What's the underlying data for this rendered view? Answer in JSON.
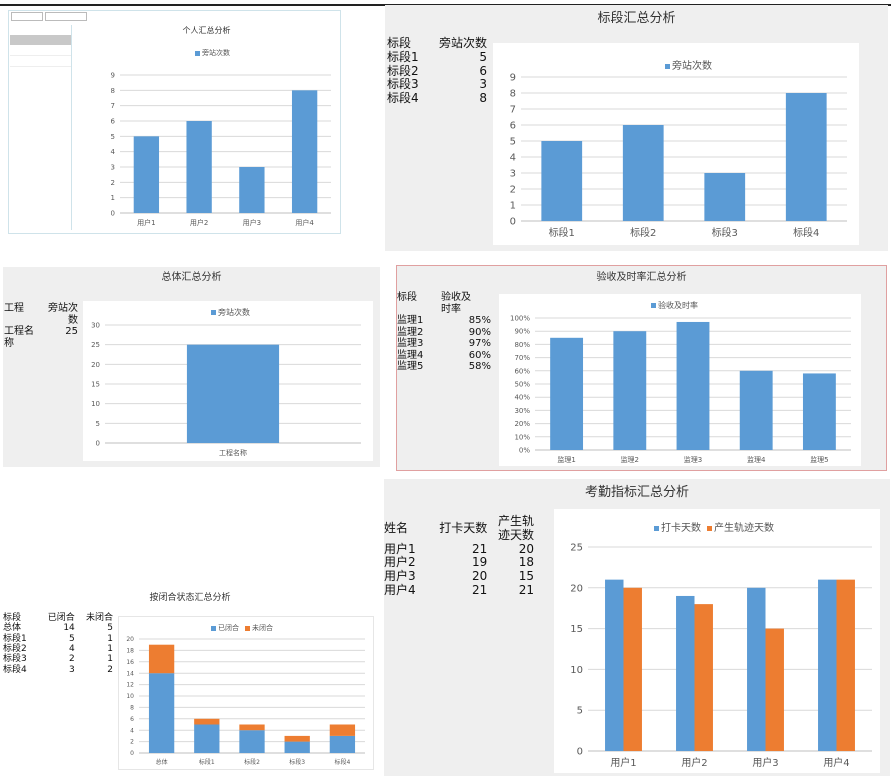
{
  "panel1": {
    "filter_bar": {
      "start_label": "",
      "start_value": "",
      "end_label": "",
      "end_value": "",
      "btn1": "",
      "btn2": "",
      "btn3": ""
    },
    "side_table": {
      "headers": [
        "",
        "",
        ""
      ],
      "rows": [
        [
          "",
          "",
          ""
        ],
        [
          "",
          "",
          ""
        ],
        [
          "",
          "",
          ""
        ]
      ]
    }
  },
  "panel3": {
    "table": {
      "headers": [
        "工程",
        "旁站次数"
      ],
      "rows": [
        [
          "工程名称",
          "25"
        ]
      ]
    }
  },
  "panel2": {
    "table": {
      "headers": [
        "标段",
        "旁站次数"
      ],
      "rows": [
        [
          "标段1",
          "5"
        ],
        [
          "标段2",
          "6"
        ],
        [
          "标段3",
          "3"
        ],
        [
          "标段4",
          "8"
        ]
      ]
    }
  },
  "panel4": {
    "table": {
      "headers": [
        "标段",
        "验收及",
        "时率"
      ],
      "rows": [
        [
          "监理1",
          "85%"
        ],
        [
          "监理2",
          "90%"
        ],
        [
          "监理3",
          "97%"
        ],
        [
          "监理4",
          "60%"
        ],
        [
          "监理5",
          "58%"
        ]
      ]
    }
  },
  "panel5": {
    "table": {
      "headers": [
        "标段",
        "已闭合",
        "未闭合"
      ],
      "rows": [
        [
          "总体",
          "14",
          "5"
        ],
        [
          "标段1",
          "5",
          "1"
        ],
        [
          "标段2",
          "4",
          "1"
        ],
        [
          "标段3",
          "2",
          "1"
        ],
        [
          "标段4",
          "3",
          "2"
        ]
      ]
    }
  },
  "panel6": {
    "table": {
      "headers": [
        "姓名",
        "打卡天数",
        "产生轨",
        "迹天数"
      ],
      "rows": [
        [
          "用户1",
          "21",
          "20"
        ],
        [
          "用户2",
          "19",
          "18"
        ],
        [
          "用户3",
          "20",
          "15"
        ],
        [
          "用户4",
          "21",
          "21"
        ]
      ]
    }
  },
  "colors": {
    "blue": "#5b9bd5",
    "orange": "#ed7d31",
    "grid": "#d9d9d9",
    "axis": "#bfbfbf"
  },
  "chart_data": [
    {
      "id": "c1",
      "type": "bar",
      "title": "个人汇总分析",
      "categories": [
        "用户1",
        "用户2",
        "用户3",
        "用户4"
      ],
      "series": [
        {
          "name": "旁站次数",
          "values": [
            5,
            6,
            3,
            8
          ]
        }
      ],
      "ylim": [
        0,
        9
      ],
      "yticks": [
        0,
        1,
        2,
        3,
        4,
        5,
        6,
        7,
        8,
        9
      ],
      "grid": true,
      "legend": "top"
    },
    {
      "id": "c2",
      "type": "bar",
      "title": "标段汇总分析",
      "categories": [
        "标段1",
        "标段2",
        "标段3",
        "标段4"
      ],
      "series": [
        {
          "name": "旁站次数",
          "values": [
            5,
            6,
            3,
            8
          ]
        }
      ],
      "ylim": [
        0,
        9
      ],
      "yticks": [
        0,
        1,
        2,
        3,
        4,
        5,
        6,
        7,
        8,
        9
      ],
      "grid": true,
      "legend": "top"
    },
    {
      "id": "c3",
      "type": "bar",
      "title": "总体汇总分析",
      "categories": [
        "工程名称"
      ],
      "series": [
        {
          "name": "旁站次数",
          "values": [
            25
          ]
        }
      ],
      "ylim": [
        0,
        30
      ],
      "yticks": [
        0,
        5,
        10,
        15,
        20,
        25,
        30
      ],
      "grid": true,
      "legend": "top"
    },
    {
      "id": "c4",
      "type": "bar",
      "title": "验收及时率汇总分析",
      "categories": [
        "监理1",
        "监理2",
        "监理3",
        "监理4",
        "监理5"
      ],
      "series": [
        {
          "name": "验收及时率",
          "values": [
            85,
            90,
            97,
            60,
            58
          ]
        }
      ],
      "ylim": [
        0,
        100
      ],
      "yticks": [
        0,
        10,
        20,
        30,
        40,
        50,
        60,
        70,
        80,
        90,
        100
      ],
      "ytick_suffix": "%",
      "grid": true,
      "legend": "top"
    },
    {
      "id": "c5",
      "type": "bar",
      "stacked": true,
      "title": "按闭合状态汇总分析",
      "categories": [
        "总体",
        "标段1",
        "标段2",
        "标段3",
        "标段4"
      ],
      "series": [
        {
          "name": "已闭合",
          "values": [
            14,
            5,
            4,
            2,
            3
          ]
        },
        {
          "name": "未闭合",
          "values": [
            5,
            1,
            1,
            1,
            2
          ]
        }
      ],
      "ylim": [
        0,
        20
      ],
      "yticks": [
        0,
        2,
        4,
        6,
        8,
        10,
        12,
        14,
        16,
        18,
        20
      ],
      "grid": true,
      "legend": "top"
    },
    {
      "id": "c6",
      "type": "bar",
      "title": "考勤指标汇总分析",
      "categories": [
        "用户1",
        "用户2",
        "用户3",
        "用户4"
      ],
      "series": [
        {
          "name": "打卡天数",
          "values": [
            21,
            19,
            20,
            21
          ]
        },
        {
          "name": "产生轨迹天数",
          "values": [
            20,
            18,
            15,
            21
          ]
        }
      ],
      "ylim": [
        0,
        25
      ],
      "yticks": [
        0,
        5,
        10,
        15,
        20,
        25
      ],
      "grid": true,
      "legend": "top"
    }
  ]
}
